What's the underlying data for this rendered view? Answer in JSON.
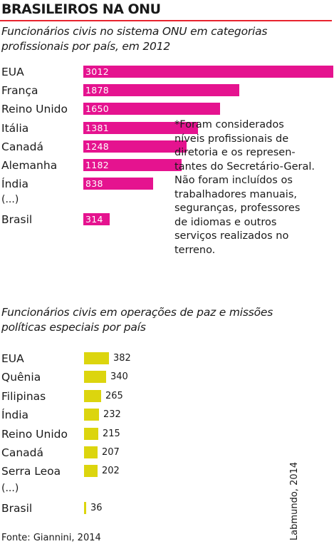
{
  "title": "BRASILEIROS NA ONU",
  "note": "*Foram considerados\nníveis profissionais de\ndiretoria e os represen-\ntantes do Secretário-Geral.\nNão foram incluídos os\ntrabalhadores manuais,\nseguranças, professores\nde idiomas e outros\nserviços realizados no\nterreno.",
  "source": "Fonte: Giannini, 2014",
  "credit": "Labmundo, 2014",
  "ellipsis": "(...)",
  "colors": {
    "magenta": "#e5138f",
    "yellow": "#dcd50e",
    "rule": "#e8242e"
  },
  "chart_data": [
    {
      "type": "bar",
      "orientation": "horizontal",
      "title": "Funcionários civis no sistema ONU em categorias profissionais por país, em 2012",
      "categories": [
        "EUA",
        "França",
        "Reino Unido",
        "Itália",
        "Canadá",
        "Alemanha",
        "Índia",
        "Brasil"
      ],
      "values": [
        3012,
        1878,
        1650,
        1381,
        1248,
        1182,
        838,
        314
      ],
      "value_labels": [
        "3012",
        "1878",
        "1650",
        "1381",
        "1248",
        "1182",
        "838",
        "314"
      ],
      "color": "#e5138f"
    },
    {
      "type": "bar",
      "orientation": "horizontal",
      "title": "Funcionários civis em operações de paz e missões políticas especiais por país",
      "categories": [
        "EUA",
        "Quênia",
        "Filipinas",
        "Índia",
        "Reino Unido",
        "Canadá",
        "Serra Leoa",
        "Brasil"
      ],
      "values": [
        382,
        340,
        265,
        232,
        215,
        207,
        202,
        36
      ],
      "value_labels": [
        "382",
        "340",
        "265",
        "232",
        "215",
        "207",
        "202",
        "36"
      ],
      "color": "#dcd50e"
    }
  ]
}
